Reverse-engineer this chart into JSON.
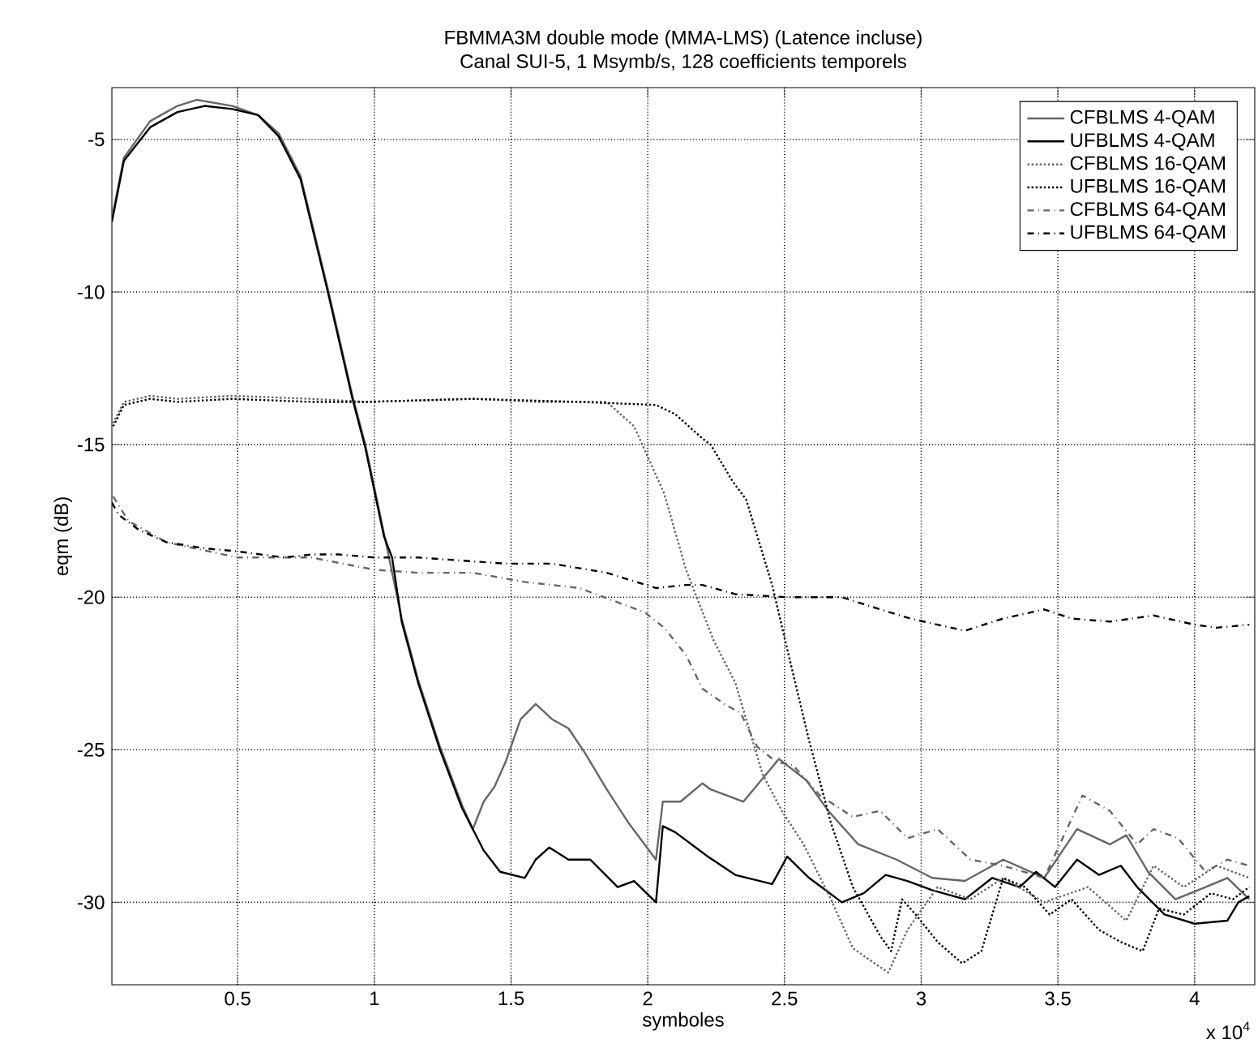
{
  "chart_data": {
    "type": "line",
    "title": "FBMMA3M double mode (MMA-LMS) (Latence incluse)",
    "subtitle": "Canal SUI-5, 1 Msymb/s, 128 coefficients temporels",
    "xlabel": "symboles",
    "ylabel": "eqm (dB)",
    "annotations": [
      "x 10$^{4}$"
    ],
    "xlim": [
      0.04,
      4.22
    ],
    "ylim": [
      -32.7,
      -3.3
    ],
    "xticks": [
      0.5,
      1,
      1.5,
      2,
      2.5,
      3,
      3.5,
      4
    ],
    "yticks": [
      -30,
      -25,
      -20,
      -15,
      -10,
      -5
    ],
    "grid": true,
    "legend": "top right",
    "series": [
      {
        "name": "CFBLMS 4-QAM",
        "color": "#666666",
        "line_style": "solid",
        "x": [
          0.04,
          0.084,
          0.18,
          0.28,
          0.35,
          0.48,
          0.575,
          0.65,
          0.73,
          0.83,
          0.92,
          0.967,
          1.035,
          1.1,
          1.16,
          1.24,
          1.32,
          1.36,
          1.4,
          1.44,
          1.48,
          1.535,
          1.59,
          1.65,
          1.71,
          1.77,
          1.85,
          1.93,
          2.03,
          2.055,
          2.12,
          2.2,
          2.23,
          2.35,
          2.48,
          2.58,
          2.66,
          2.77,
          2.91,
          3.04,
          3.16,
          3.3,
          3.45,
          3.57,
          3.69,
          3.75,
          3.83,
          3.93,
          4.04,
          4.12,
          4.2
        ],
        "values": [
          -7.6,
          -5.6,
          -4.4,
          -3.9,
          -3.7,
          -3.9,
          -4.2,
          -4.8,
          -6.2,
          -9.9,
          -13.4,
          -15.0,
          -17.9,
          -20.7,
          -22.7,
          -24.9,
          -26.8,
          -27.6,
          -26.7,
          -26.2,
          -25.4,
          -24.0,
          -23.5,
          -24.0,
          -24.3,
          -25.1,
          -26.3,
          -27.4,
          -28.6,
          -26.7,
          -26.7,
          -26.1,
          -26.3,
          -26.7,
          -25.3,
          -26.0,
          -27.0,
          -28.1,
          -28.6,
          -29.2,
          -29.3,
          -28.6,
          -29.2,
          -27.6,
          -28.1,
          -27.8,
          -29.0,
          -29.9,
          -29.5,
          -29.2,
          -29.9
        ]
      },
      {
        "name": "UFBLMS 4-QAM",
        "color": "#000000",
        "line_style": "solid",
        "x": [
          0.04,
          0.084,
          0.18,
          0.28,
          0.38,
          0.48,
          0.575,
          0.65,
          0.73,
          0.83,
          0.92,
          0.967,
          1.035,
          1.065,
          1.1,
          1.16,
          1.24,
          1.32,
          1.4,
          1.46,
          1.55,
          1.59,
          1.64,
          1.71,
          1.79,
          1.89,
          1.95,
          2.03,
          2.055,
          2.1,
          2.22,
          2.32,
          2.455,
          2.51,
          2.59,
          2.71,
          2.79,
          2.87,
          2.95,
          3.04,
          3.16,
          3.26,
          3.36,
          3.42,
          3.49,
          3.57,
          3.65,
          3.73,
          3.79,
          3.89,
          4.0,
          4.12,
          4.16,
          4.2
        ],
        "values": [
          -7.7,
          -5.7,
          -4.6,
          -4.1,
          -3.9,
          -4.0,
          -4.2,
          -4.9,
          -6.3,
          -10.0,
          -13.5,
          -15.1,
          -18.0,
          -18.7,
          -20.8,
          -22.8,
          -25.0,
          -26.9,
          -28.3,
          -29.0,
          -29.2,
          -28.6,
          -28.2,
          -28.6,
          -28.6,
          -29.5,
          -29.3,
          -30.0,
          -27.5,
          -27.7,
          -28.5,
          -29.1,
          -29.4,
          -28.5,
          -29.2,
          -30.0,
          -29.7,
          -29.1,
          -29.3,
          -29.6,
          -29.9,
          -29.2,
          -29.5,
          -29.0,
          -29.5,
          -28.6,
          -29.1,
          -28.8,
          -29.5,
          -30.4,
          -30.7,
          -30.6,
          -30.0,
          -29.8
        ]
      },
      {
        "name": "CFBLMS 16-QAM",
        "color": "#666666",
        "line_style": "dotted",
        "x": [
          0.045,
          0.084,
          0.18,
          0.28,
          0.48,
          0.77,
          0.97,
          1.36,
          1.6,
          1.85,
          1.95,
          2.03,
          2.06,
          2.14,
          2.24,
          2.32,
          2.42,
          2.49,
          2.57,
          2.67,
          2.75,
          2.83,
          2.88,
          2.95,
          3.06,
          3.18,
          3.3,
          3.45,
          3.61,
          3.75,
          3.85,
          3.96,
          4.08,
          4.2
        ],
        "values": [
          -14.3,
          -13.6,
          -13.4,
          -13.5,
          -13.4,
          -13.5,
          -13.6,
          -13.5,
          -13.6,
          -13.6,
          -14.4,
          -16.0,
          -16.6,
          -19.1,
          -21.4,
          -22.8,
          -25.8,
          -27.0,
          -28.1,
          -29.9,
          -31.5,
          -32.0,
          -32.3,
          -30.9,
          -29.5,
          -29.9,
          -29.2,
          -30.0,
          -29.5,
          -30.6,
          -28.8,
          -29.5,
          -28.8,
          -29.2
        ]
      },
      {
        "name": "UFBLMS 16-QAM",
        "color": "#000000",
        "line_style": "dotted",
        "x": [
          0.045,
          0.084,
          0.18,
          0.28,
          0.48,
          0.77,
          0.97,
          1.36,
          1.75,
          2.03,
          2.1,
          2.2,
          2.23,
          2.31,
          2.36,
          2.455,
          2.51,
          2.59,
          2.67,
          2.75,
          2.85,
          2.89,
          2.93,
          2.98,
          3.06,
          3.15,
          3.22,
          3.3,
          3.38,
          3.47,
          3.55,
          3.65,
          3.73,
          3.81,
          3.87,
          3.96,
          4.06,
          4.14,
          4.2
        ],
        "values": [
          -14.4,
          -13.7,
          -13.5,
          -13.6,
          -13.5,
          -13.6,
          -13.6,
          -13.5,
          -13.6,
          -13.7,
          -14.0,
          -14.8,
          -15.0,
          -16.2,
          -16.8,
          -19.6,
          -21.7,
          -24.7,
          -27.4,
          -29.5,
          -31.1,
          -31.6,
          -29.9,
          -30.4,
          -31.3,
          -32.0,
          -31.6,
          -29.2,
          -29.5,
          -30.4,
          -29.9,
          -30.9,
          -31.3,
          -31.6,
          -30.2,
          -30.4,
          -29.7,
          -29.9,
          -29.5
        ]
      },
      {
        "name": "CFBLMS 64-QAM",
        "color": "#666666",
        "line_style": "dashdot",
        "x": [
          0.045,
          0.1,
          0.24,
          0.5,
          0.77,
          1.0,
          1.16,
          1.36,
          1.55,
          1.75,
          1.87,
          1.99,
          2.06,
          2.14,
          2.2,
          2.28,
          2.34,
          2.4,
          2.47,
          2.53,
          2.63,
          2.75,
          2.85,
          2.95,
          3.06,
          3.18,
          3.3,
          3.45,
          3.59,
          3.69,
          3.79,
          3.85,
          3.94,
          4.04,
          4.12,
          4.2
        ],
        "values": [
          -16.7,
          -17.5,
          -18.2,
          -18.7,
          -18.7,
          -19.1,
          -19.2,
          -19.2,
          -19.5,
          -19.7,
          -20.1,
          -20.5,
          -21.0,
          -21.9,
          -23.0,
          -23.5,
          -23.8,
          -24.9,
          -25.4,
          -25.5,
          -26.5,
          -27.2,
          -27.0,
          -27.9,
          -27.6,
          -28.6,
          -28.8,
          -29.2,
          -26.5,
          -27.0,
          -28.1,
          -27.6,
          -27.9,
          -29.0,
          -28.6,
          -28.8
        ]
      },
      {
        "name": "UFBLMS 64-QAM",
        "color": "#000000",
        "line_style": "dashdot",
        "x": [
          0.04,
          0.065,
          0.14,
          0.24,
          0.38,
          0.5,
          0.67,
          0.77,
          0.87,
          1.0,
          1.16,
          1.32,
          1.48,
          1.65,
          1.85,
          2.03,
          2.14,
          2.2,
          2.32,
          2.51,
          2.71,
          2.85,
          2.96,
          3.16,
          3.3,
          3.45,
          3.55,
          3.69,
          3.85,
          4.0,
          4.08,
          4.2
        ],
        "values": [
          -16.9,
          -17.3,
          -17.8,
          -18.2,
          -18.4,
          -18.5,
          -18.7,
          -18.6,
          -18.6,
          -18.7,
          -18.7,
          -18.8,
          -18.9,
          -18.9,
          -19.2,
          -19.7,
          -19.6,
          -19.6,
          -19.9,
          -20.0,
          -20.0,
          -20.4,
          -20.7,
          -21.1,
          -20.7,
          -20.4,
          -20.7,
          -20.8,
          -20.6,
          -20.9,
          -21.0,
          -20.9
        ]
      }
    ]
  }
}
